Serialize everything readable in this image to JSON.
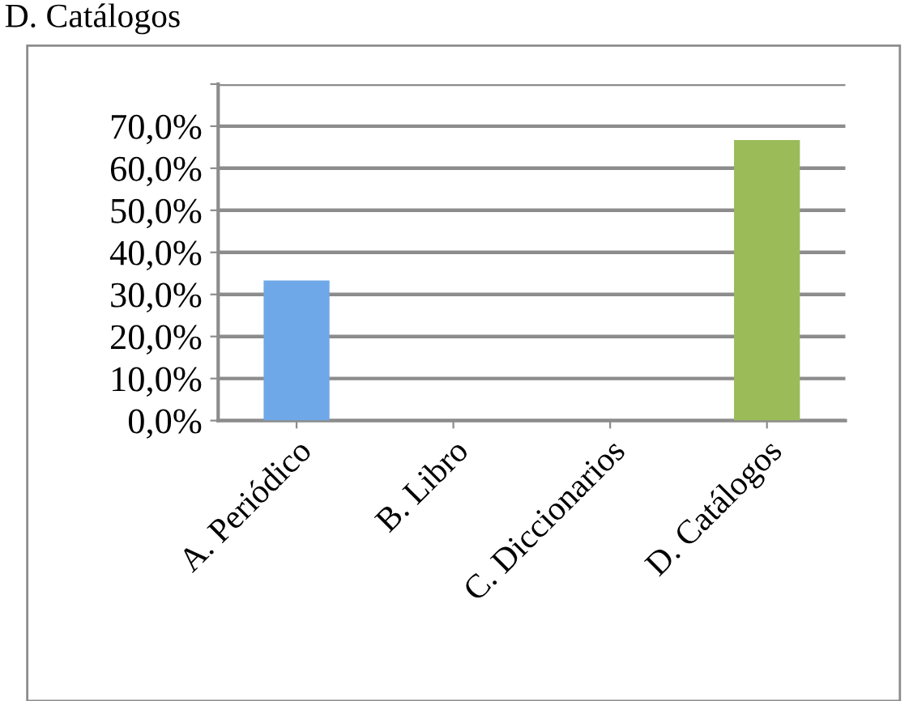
{
  "chart_data": {
    "type": "bar",
    "categories": [
      "A. Periódico",
      "B. Libro",
      "C. Diccionarios",
      "D. Catálogos"
    ],
    "values": [
      33.3,
      0,
      0,
      66.7
    ],
    "colors": [
      "#6fa8e8",
      "#3c5a86",
      "#4f6228",
      "#9bbb59"
    ],
    "ylim": [
      0,
      80
    ],
    "yticks": [
      {
        "value": 0,
        "label": "0,0%"
      },
      {
        "value": 10,
        "label": "10,0%"
      },
      {
        "value": 20,
        "label": "20,0%"
      },
      {
        "value": 30,
        "label": "30,0%"
      },
      {
        "value": 40,
        "label": "40,0%"
      },
      {
        "value": 50,
        "label": "50,0%"
      },
      {
        "value": 60,
        "label": "60,0%"
      },
      {
        "value": 70,
        "label": "70,0%"
      },
      {
        "value": 80,
        "label": null
      }
    ],
    "grid": "y",
    "annotations": [
      "D. Catálogos"
    ]
  }
}
